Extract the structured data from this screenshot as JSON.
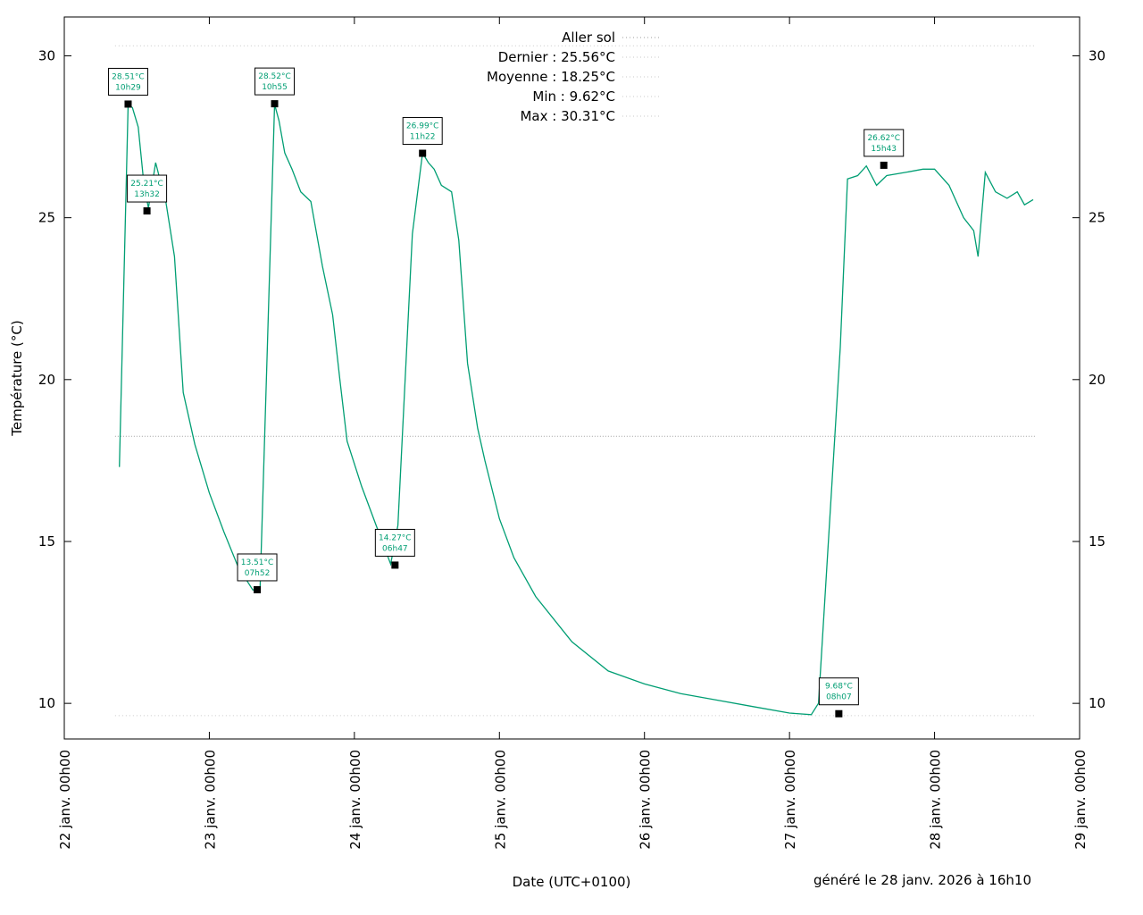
{
  "chart_data": {
    "type": "line",
    "xlabel": "Date (UTC+0100)",
    "ylabel": "Température (°C)",
    "xlim": [
      0,
      7
    ],
    "ylim": [
      8.9,
      31.2
    ],
    "x_unit": "days",
    "x_ticks": [
      {
        "x": 0,
        "label": "22 janv. 00h00"
      },
      {
        "x": 1,
        "label": "23 janv. 00h00"
      },
      {
        "x": 2,
        "label": "24 janv. 00h00"
      },
      {
        "x": 3,
        "label": "25 janv. 00h00"
      },
      {
        "x": 4,
        "label": "26 janv. 00h00"
      },
      {
        "x": 5,
        "label": "27 janv. 00h00"
      },
      {
        "x": 6,
        "label": "28 janv. 00h00"
      },
      {
        "x": 7,
        "label": "29 janv. 00h00"
      }
    ],
    "y_ticks": [
      10,
      15,
      20,
      25,
      30
    ],
    "grid": false,
    "legend": {
      "position": "top-center",
      "entries": [
        "Aller sol",
        "Dernier : 25.56°C",
        "Moyenne : 18.25°C",
        "Min : 9.62°C",
        "Max : 30.31°C"
      ]
    },
    "series": [
      {
        "name": "Aller sol",
        "color": "#009e73",
        "points": [
          [
            0.38,
            17.3
          ],
          [
            0.44,
            28.5
          ],
          [
            0.47,
            28.4
          ],
          [
            0.51,
            27.8
          ],
          [
            0.55,
            26.0
          ],
          [
            0.58,
            25.3
          ],
          [
            0.63,
            26.7
          ],
          [
            0.67,
            26.0
          ],
          [
            0.7,
            25.5
          ],
          [
            0.76,
            23.8
          ],
          [
            0.82,
            19.6
          ],
          [
            0.9,
            18.0
          ],
          [
            1.0,
            16.5
          ],
          [
            1.1,
            15.3
          ],
          [
            1.2,
            14.2
          ],
          [
            1.3,
            13.5
          ],
          [
            1.35,
            13.6
          ],
          [
            1.4,
            21.0
          ],
          [
            1.45,
            28.5
          ],
          [
            1.48,
            28.0
          ],
          [
            1.52,
            27.0
          ],
          [
            1.57,
            26.5
          ],
          [
            1.63,
            25.8
          ],
          [
            1.7,
            25.5
          ],
          [
            1.78,
            23.5
          ],
          [
            1.85,
            22.0
          ],
          [
            1.9,
            20.0
          ],
          [
            1.95,
            18.1
          ],
          [
            2.05,
            16.7
          ],
          [
            2.15,
            15.5
          ],
          [
            2.25,
            14.3
          ],
          [
            2.3,
            15.5
          ],
          [
            2.4,
            24.5
          ],
          [
            2.47,
            27.0
          ],
          [
            2.51,
            26.7
          ],
          [
            2.55,
            26.5
          ],
          [
            2.6,
            26.0
          ],
          [
            2.67,
            25.8
          ],
          [
            2.72,
            24.3
          ],
          [
            2.78,
            20.5
          ],
          [
            2.85,
            18.5
          ],
          [
            2.9,
            17.5
          ],
          [
            3.0,
            15.7
          ],
          [
            3.1,
            14.5
          ],
          [
            3.25,
            13.3
          ],
          [
            3.5,
            11.9
          ],
          [
            3.75,
            11.0
          ],
          [
            4.0,
            10.6
          ],
          [
            4.25,
            10.3
          ],
          [
            4.5,
            10.1
          ],
          [
            4.75,
            9.9
          ],
          [
            5.0,
            9.7
          ],
          [
            5.15,
            9.65
          ],
          [
            5.2,
            10.0
          ],
          [
            5.35,
            21.0
          ],
          [
            5.4,
            26.2
          ],
          [
            5.47,
            26.3
          ],
          [
            5.53,
            26.6
          ],
          [
            5.6,
            26.0
          ],
          [
            5.67,
            26.3
          ],
          [
            5.8,
            26.4
          ],
          [
            5.92,
            26.5
          ],
          [
            6.0,
            26.5
          ],
          [
            6.1,
            26.0
          ],
          [
            6.2,
            25.0
          ],
          [
            6.27,
            24.6
          ],
          [
            6.3,
            23.8
          ],
          [
            6.35,
            26.4
          ],
          [
            6.42,
            25.8
          ],
          [
            6.5,
            25.6
          ],
          [
            6.57,
            25.8
          ],
          [
            6.62,
            25.4
          ],
          [
            6.68,
            25.56
          ]
        ]
      }
    ],
    "mean_line": {
      "y": 18.25,
      "color": "#9e9e9e"
    },
    "min_line": {
      "y": 9.62,
      "color": "#c8c8c8"
    },
    "max_line": {
      "y": 30.31,
      "color": "#c8c8c8"
    },
    "annotations": [
      {
        "x": 0.44,
        "y": 28.51,
        "value": "28.51°C",
        "time": "10h29"
      },
      {
        "x": 0.57,
        "y": 25.21,
        "value": "25.21°C",
        "time": "13h32"
      },
      {
        "x": 1.33,
        "y": 13.51,
        "value": "13.51°C",
        "time": "07h52"
      },
      {
        "x": 1.45,
        "y": 28.52,
        "value": "28.52°C",
        "time": "10h55"
      },
      {
        "x": 2.28,
        "y": 14.27,
        "value": "14.27°C",
        "time": "06h47"
      },
      {
        "x": 2.47,
        "y": 26.99,
        "value": "26.99°C",
        "time": "11h22"
      },
      {
        "x": 5.34,
        "y": 9.68,
        "value": "9.68°C",
        "time": "08h07"
      },
      {
        "x": 5.65,
        "y": 26.62,
        "value": "26.62°C",
        "time": "15h43"
      }
    ]
  },
  "footer": {
    "generated": "généré le 28 janv. 2026 à 16h10"
  }
}
